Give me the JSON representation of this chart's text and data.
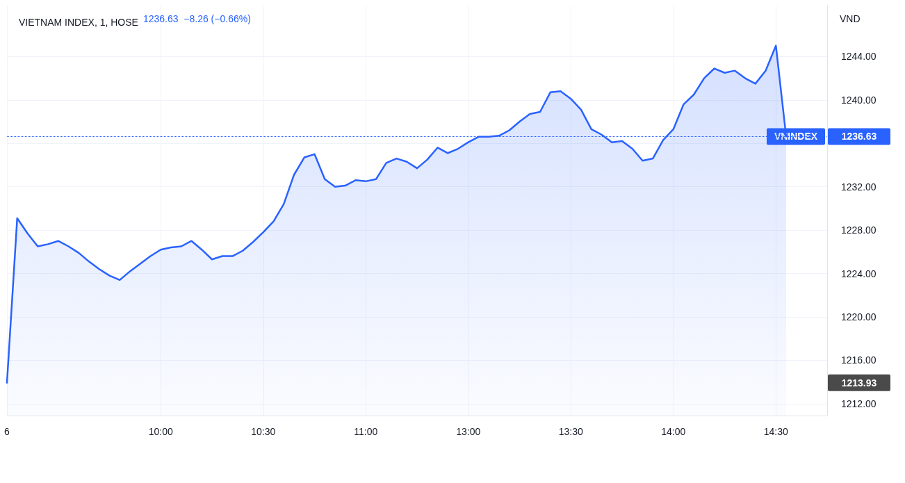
{
  "chart_data": {
    "type": "area",
    "title": "VIETNAM INDEX, 1, HOSE",
    "subtitle": "1236.63  −8.26 (−0.66%)",
    "ylabel": "VND",
    "categories": [
      "6",
      null,
      null,
      null,
      null,
      null,
      null,
      null,
      null,
      null,
      null,
      null,
      null,
      null,
      null,
      "10:00",
      null,
      null,
      null,
      null,
      null,
      null,
      null,
      null,
      null,
      "10:30",
      null,
      null,
      null,
      null,
      null,
      null,
      null,
      null,
      null,
      "11:00",
      null,
      null,
      null,
      null,
      null,
      null,
      null,
      null,
      null,
      "13:00",
      null,
      null,
      null,
      null,
      null,
      null,
      null,
      null,
      null,
      "13:30",
      null,
      null,
      null,
      null,
      null,
      null,
      null,
      null,
      null,
      "14:00",
      null,
      null,
      null,
      null,
      null,
      null,
      null,
      null,
      null,
      "14:30",
      null,
      null,
      null,
      null,
      null
    ],
    "series": [
      {
        "color": "#2962ff",
        "values": [
          1213.93,
          1229.1,
          1227.7,
          1226.5,
          1226.7,
          1227.0,
          1226.5,
          1225.9,
          1225.1,
          1224.4,
          1223.8,
          1223.4,
          1224.2,
          1224.9,
          1225.6,
          1226.2,
          1226.4,
          1226.5,
          1227.0,
          1226.2,
          1225.3,
          1225.6,
          1225.6,
          1226.1,
          1226.9,
          1227.8,
          1228.8,
          1230.4,
          1233.1,
          1234.7,
          1235.0,
          1232.7,
          1232.0,
          1232.1,
          1232.6,
          1232.5,
          1232.7,
          1234.2,
          1234.6,
          1234.3,
          1233.7,
          1234.5,
          1235.6,
          1235.1,
          1235.5,
          1236.1,
          1236.6,
          1236.6,
          1236.7,
          1237.2,
          1238.0,
          1238.7,
          1238.9,
          1240.7,
          1240.8,
          1240.1,
          1239.1,
          1237.3,
          1236.8,
          1236.1,
          1236.2,
          1235.5,
          1234.4,
          1234.6,
          1236.3,
          1237.3,
          1239.6,
          1240.5,
          1242.0,
          1242.9,
          1242.5,
          1242.7,
          1242.0,
          1241.5,
          1242.7,
          1245.0,
          1236.63,
          null,
          null,
          null,
          null
        ]
      }
    ],
    "ylim": [
      1210.9,
      1248.7
    ],
    "yticks": [
      {
        "value": 1212,
        "label": "1212.00"
      },
      {
        "value": 1216,
        "label": "1216.00"
      },
      {
        "value": 1220,
        "label": "1220.00"
      },
      {
        "value": 1224,
        "label": "1224.00"
      },
      {
        "value": 1228,
        "label": "1228.00"
      },
      {
        "value": 1232,
        "label": "1232.00"
      },
      {
        "value": 1236,
        "label": null
      },
      {
        "value": 1240,
        "label": "1240.00"
      },
      {
        "value": 1244,
        "label": "1244.00"
      }
    ],
    "grid": true,
    "marker": "none",
    "line_style": "solid",
    "legend": false,
    "ref_lines": [
      {
        "axis": "y",
        "value": 1236.63,
        "label": "VNINDEX",
        "color": "#2962ff",
        "line_style": "dotted"
      }
    ],
    "annotations": [
      "1236.63",
      "1213.93"
    ]
  }
}
